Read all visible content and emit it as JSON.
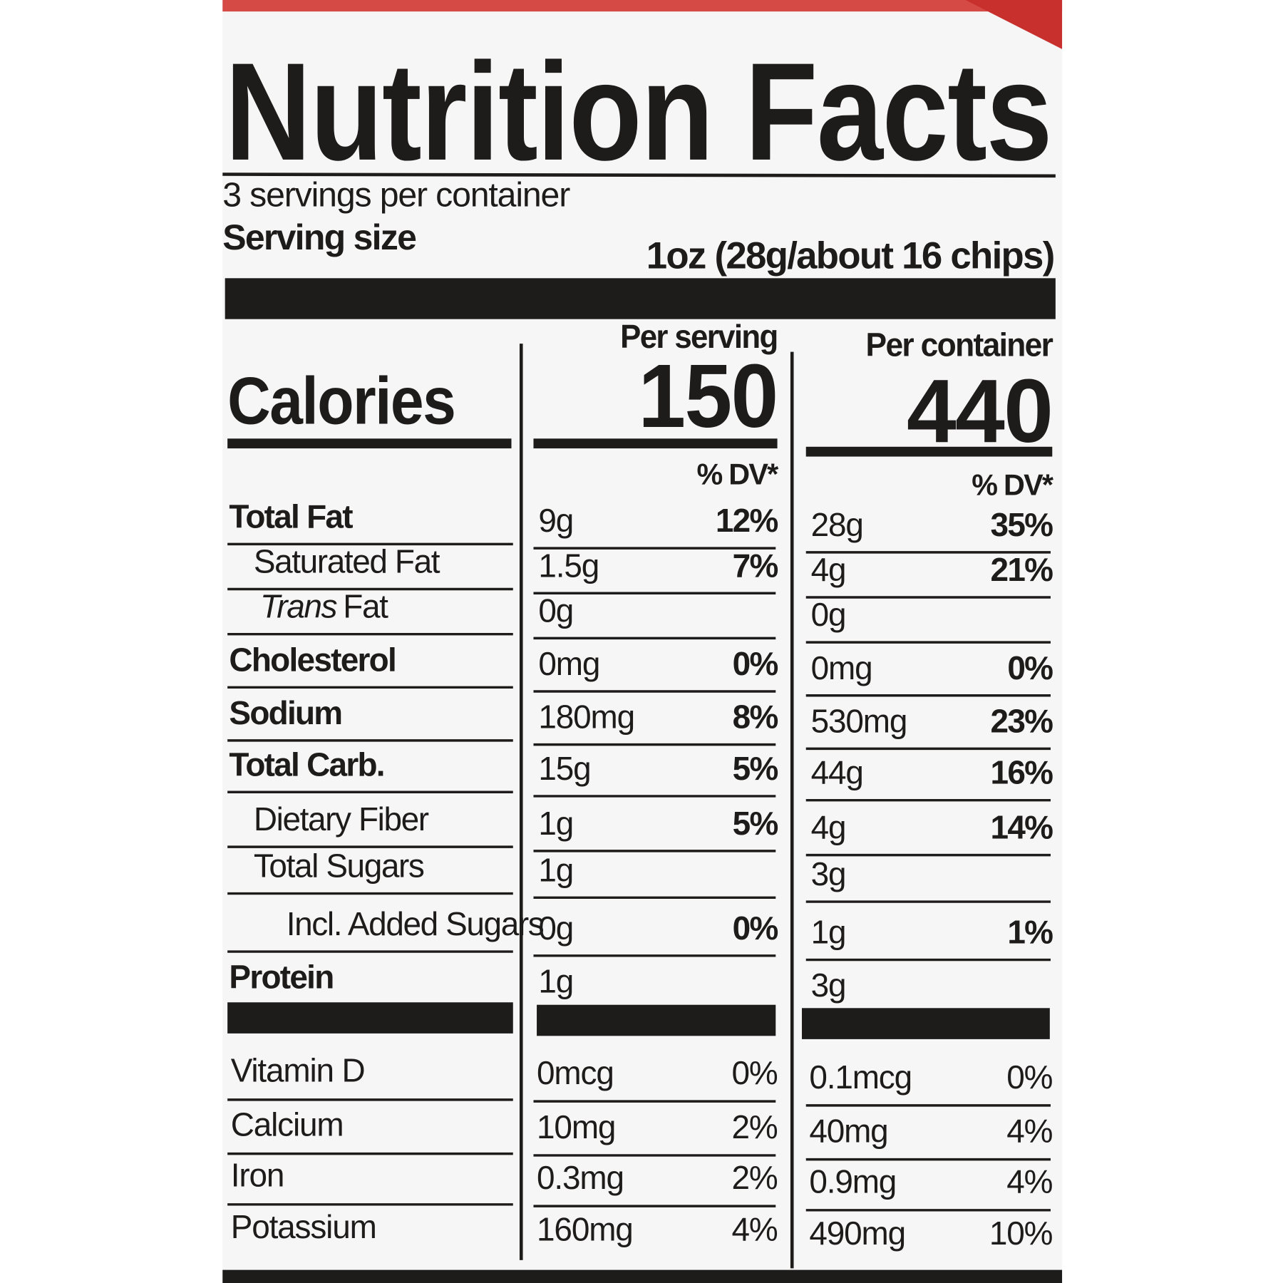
{
  "header": {
    "title": "Nutrition Facts",
    "servings": "3 servings per container",
    "serving_size_label": "Serving size",
    "serving_size": "1oz (28g/about 16 chips)"
  },
  "calories_label": "Calories",
  "columns": [
    {
      "heading": "Per serving",
      "calories": 150,
      "dv_heading": "% DV*"
    },
    {
      "heading": "Per container",
      "calories": 440,
      "dv_heading": "% DV*"
    }
  ],
  "nutrients": [
    {
      "label": "Total Fat",
      "bold": true,
      "indent": 0,
      "values": [
        [
          "9g",
          "12%"
        ],
        [
          "28g",
          "35%"
        ]
      ]
    },
    {
      "label": "Saturated Fat",
      "bold": false,
      "indent": 1,
      "values": [
        [
          "1.5g",
          "7%"
        ],
        [
          "4g",
          "21%"
        ]
      ]
    },
    {
      "label_italic": "Trans",
      "label": "Fat",
      "bold": false,
      "indent": 1,
      "values": [
        [
          "0g"
        ],
        [
          "0g"
        ]
      ]
    },
    {
      "label": "Cholesterol",
      "bold": true,
      "indent": 0,
      "values": [
        [
          "0mg",
          "0%"
        ],
        [
          "0mg",
          "0%"
        ]
      ]
    },
    {
      "label": "Sodium",
      "bold": true,
      "indent": 0,
      "values": [
        [
          "180mg",
          "8%"
        ],
        [
          "530mg",
          "23%"
        ]
      ]
    },
    {
      "label": "Total Carb.",
      "bold": true,
      "indent": 0,
      "values": [
        [
          "15g",
          "5%"
        ],
        [
          "44g",
          "16%"
        ]
      ]
    },
    {
      "label": "Dietary Fiber",
      "bold": false,
      "indent": 1,
      "values": [
        [
          "1g",
          "5%"
        ],
        [
          "4g",
          "14%"
        ]
      ]
    },
    {
      "label": "Total Sugars",
      "bold": false,
      "indent": 1,
      "values": [
        [
          "1g"
        ],
        [
          "3g"
        ]
      ]
    },
    {
      "label": "Incl. Added Sugars",
      "bold": false,
      "indent": 2,
      "values": [
        [
          "0g",
          "0%"
        ],
        [
          "1g",
          "1%"
        ]
      ]
    },
    {
      "label": "Protein",
      "bold": true,
      "indent": 0,
      "values": [
        [
          "1g"
        ],
        [
          "3g"
        ]
      ]
    }
  ],
  "vitamins": [
    {
      "label": "Vitamin D",
      "values": [
        [
          "0mcg",
          "0%"
        ],
        [
          "0.1mcg",
          "0%"
        ]
      ]
    },
    {
      "label": "Calcium",
      "values": [
        [
          "10mg",
          "2%"
        ],
        [
          "40mg",
          "4%"
        ]
      ]
    },
    {
      "label": "Iron",
      "values": [
        [
          "0.3mg",
          "2%"
        ],
        [
          "0.9mg",
          "4%"
        ]
      ]
    },
    {
      "label": "Potassium",
      "values": [
        [
          "160mg",
          "4%"
        ],
        [
          "490mg",
          "10%"
        ]
      ]
    }
  ]
}
